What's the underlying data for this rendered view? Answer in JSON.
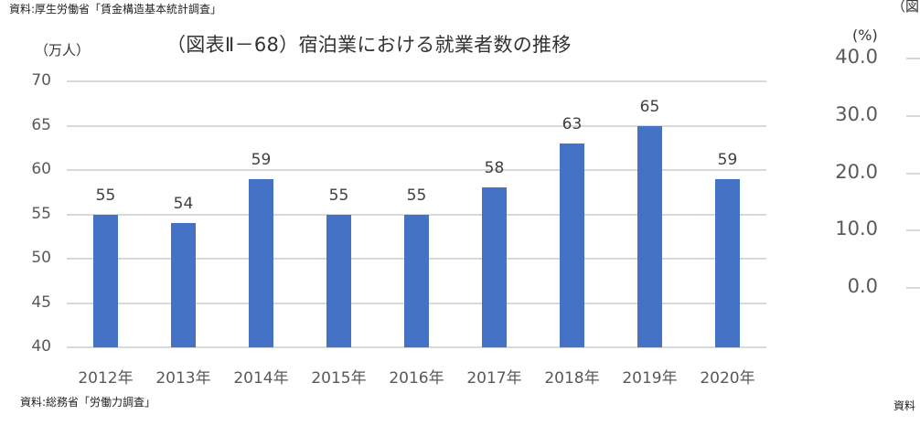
{
  "source_top": "資料:厚生労働省「賃金構造基本統計調査」",
  "source_bottom": "資料:総務省「労働力調査」",
  "chart_data": [
    {
      "type": "bar",
      "title": "（図表Ⅱ－68）宿泊業における就業者数の推移",
      "ylabel": "（万人）",
      "xlabel": "",
      "categories": [
        "2012年",
        "2013年",
        "2014年",
        "2015年",
        "2016年",
        "2017年",
        "2018年",
        "2019年",
        "2020年"
      ],
      "values": [
        55,
        54,
        59,
        55,
        55,
        58,
        63,
        65,
        59
      ],
      "data_labels": [
        "55",
        "54",
        "59",
        "55",
        "55",
        "58",
        "63",
        "65",
        "59"
      ],
      "ylim": [
        40,
        70
      ],
      "yticks": [
        "70",
        "65",
        "60",
        "55",
        "50",
        "45",
        "40"
      ],
      "grid": true,
      "legend": null,
      "bar_color": "#4472c4"
    },
    {
      "type": "partial",
      "title": "（図",
      "ylabel": "(%)",
      "yticks": [
        "40.0",
        "30.0",
        "20.0",
        "10.0",
        "0.0"
      ],
      "ylim": [
        0,
        40
      ],
      "source": "資料"
    }
  ]
}
